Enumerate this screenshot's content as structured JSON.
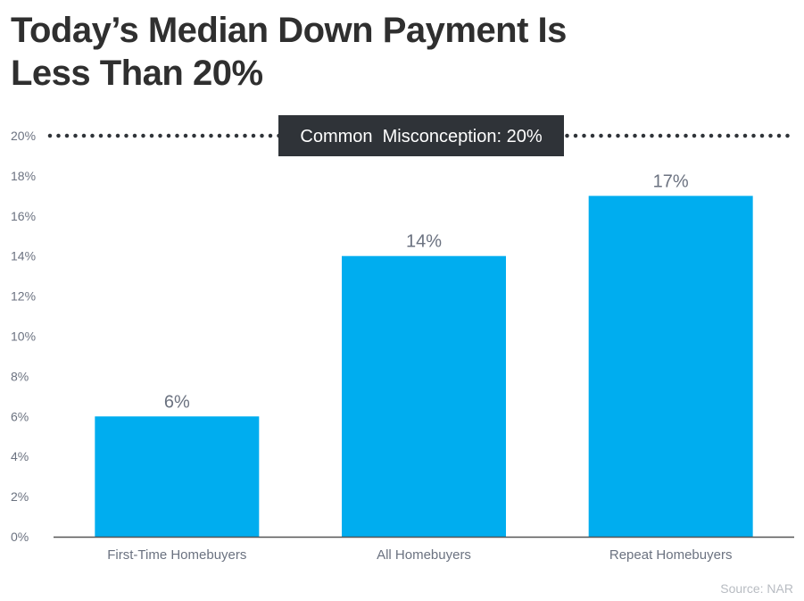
{
  "title_line1": "Today’s Median Down Payment Is",
  "title_line2": "Less Than 20%",
  "source": "Source: NAR",
  "colors": {
    "bar": "#00adef",
    "text": "#2f2f2f",
    "axis_text": "#6b7280",
    "callout_bg": "#2f3338",
    "callout_text": "#ffffff",
    "reference_line": "#2f3338"
  },
  "chart_data": {
    "type": "bar",
    "title": "Today’s Median Down Payment Is Less Than 20%",
    "xlabel": "",
    "ylabel": "",
    "categories": [
      "First-Time Homebuyers",
      "All Homebuyers",
      "Repeat Homebuyers"
    ],
    "values": [
      6,
      14,
      17
    ],
    "data_labels": [
      "6%",
      "14%",
      "17%"
    ],
    "ylim": [
      0,
      20
    ],
    "y_ticks": [
      0,
      2,
      4,
      6,
      8,
      10,
      12,
      14,
      16,
      18,
      20
    ],
    "y_tick_labels": [
      "0%",
      "2%",
      "4%",
      "6%",
      "8%",
      "10%",
      "12%",
      "14%",
      "16%",
      "18%",
      "20%"
    ],
    "grid": false,
    "reference_line": {
      "value": 20,
      "style": "dotted",
      "label": "Common  Misconception: 20%"
    }
  }
}
